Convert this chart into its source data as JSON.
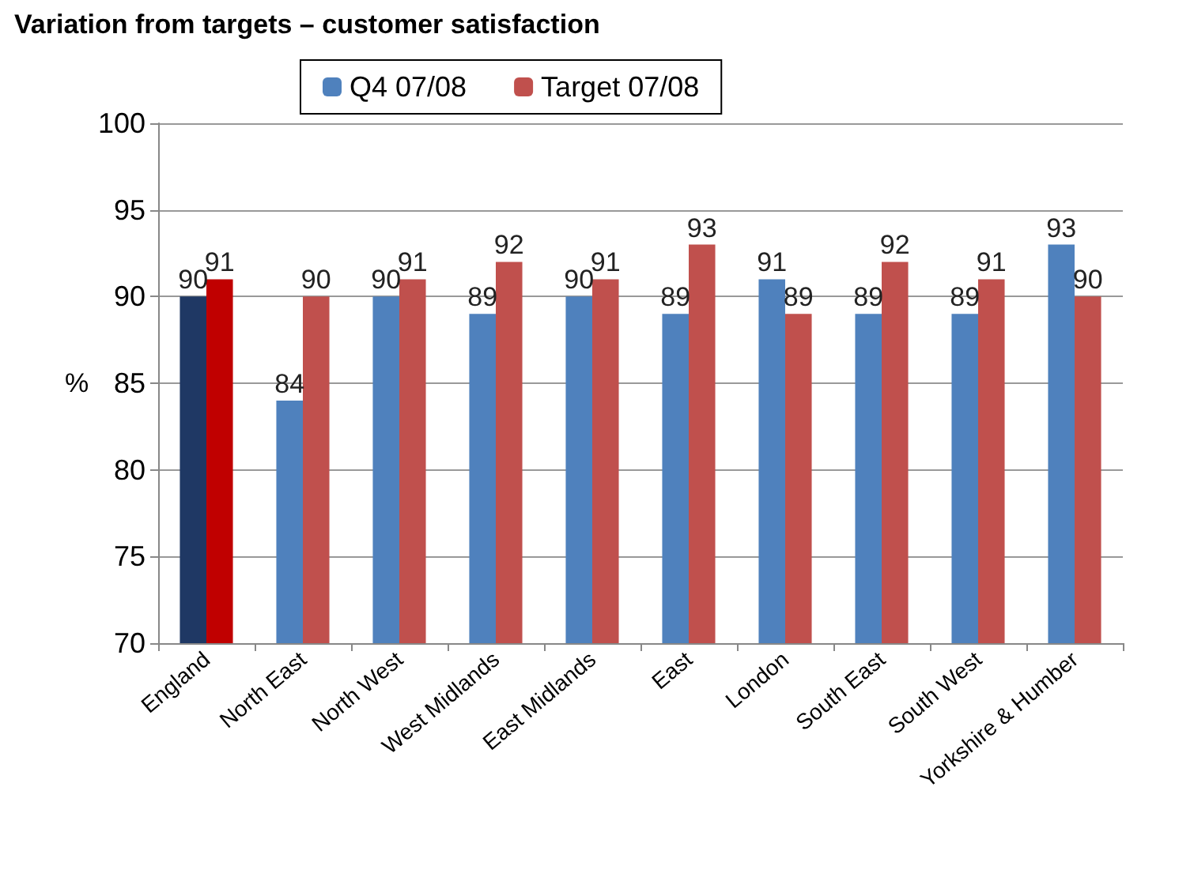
{
  "chart_data": {
    "type": "bar",
    "title": "Variation from targets – customer satisfaction",
    "ylabel": "%",
    "categories": [
      "England",
      "North East",
      "North West",
      "West Midlands",
      "East Midlands",
      "East",
      "London",
      "South East",
      "South West",
      "Yorkshire & Humber"
    ],
    "series": [
      {
        "name": "Q4 07/08",
        "color": "#4f81bd",
        "colors": [
          "#1f3864",
          "#4f81bd",
          "#4f81bd",
          "#4f81bd",
          "#4f81bd",
          "#4f81bd",
          "#4f81bd",
          "#4f81bd",
          "#4f81bd",
          "#4f81bd"
        ],
        "values": [
          90,
          84,
          90,
          89,
          90,
          89,
          91,
          89,
          89,
          93
        ]
      },
      {
        "name": "Target 07/08",
        "color": "#c0504d",
        "colors": [
          "#c00000",
          "#c0504d",
          "#c0504d",
          "#c0504d",
          "#c0504d",
          "#c0504d",
          "#c0504d",
          "#c0504d",
          "#c0504d",
          "#c0504d"
        ],
        "values": [
          91,
          90,
          91,
          92,
          91,
          93,
          89,
          92,
          91,
          90
        ]
      }
    ],
    "ylim": [
      70,
      100
    ],
    "yticks": [
      70,
      75,
      80,
      85,
      90,
      95,
      100
    ],
    "grid": "y",
    "legend": "top",
    "data_labels": true
  }
}
